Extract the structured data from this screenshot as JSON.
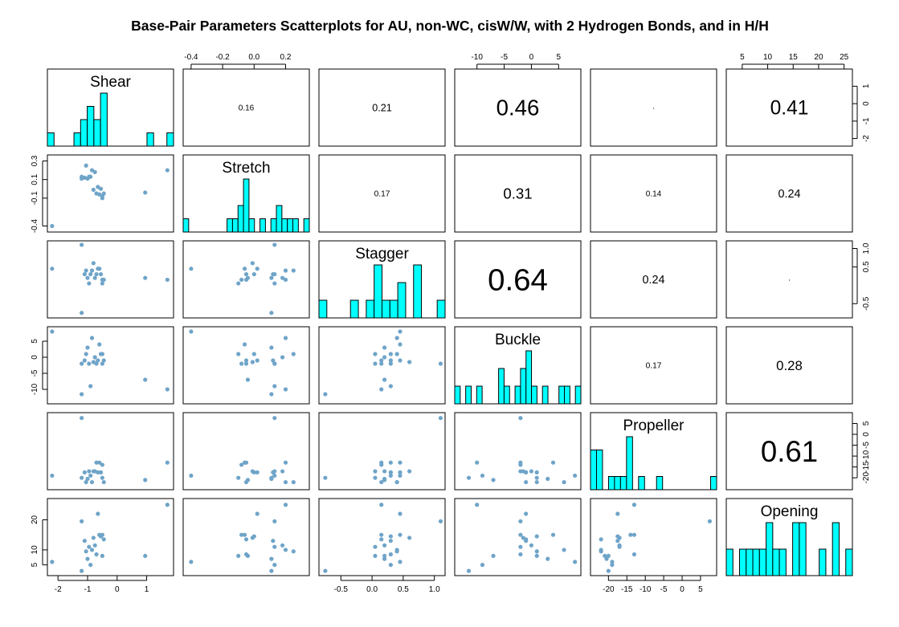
{
  "chart_data": {
    "type": "scatter",
    "title": "Base-Pair Parameters Scatterplots for AU, non-WC, cisW/W, with 2 Hydrogen Bonds, and in H/H",
    "variables": [
      "Shear",
      "Stretch",
      "Stagger",
      "Buckle",
      "Propeller",
      "Opening"
    ],
    "ranges": {
      "Shear": [
        -2.25,
        1.8
      ],
      "Stretch": [
        -0.43,
        0.33
      ],
      "Stagger": [
        -0.8,
        1.12
      ],
      "Buckle": [
        -13.5,
        8.5
      ],
      "Propeller": [
        -24.0,
        8.5
      ],
      "Opening": [
        2.5,
        26.0
      ]
    },
    "tick_labels": {
      "Shear": [
        "-2",
        "-1",
        "0",
        "1"
      ],
      "Stretch": [
        "-0.4",
        "-0.1",
        "0.1",
        "0.3"
      ],
      "Stretch_top": [
        "-0.4",
        "-0.2",
        "0.0",
        "0.2"
      ],
      "Stagger": [
        "-0.5",
        "0.5",
        "1.0"
      ],
      "Stagger_bottom": [
        "-0.5",
        "0.0",
        "0.5",
        "1.0"
      ],
      "Buckle": [
        "-10",
        "-5",
        "0",
        "5"
      ],
      "Propeller": [
        "-20",
        "-15",
        "-10",
        "-5",
        "0",
        "5"
      ],
      "Propeller_right": [
        "-20",
        "-15",
        "-10",
        "-5",
        "0",
        "5"
      ],
      "Opening": [
        "5",
        "10",
        "20"
      ],
      "Opening_top": [
        "5",
        "10",
        "15",
        "20",
        "25"
      ],
      "Shear_right": [
        "-2",
        "-1",
        "0",
        "1"
      ]
    },
    "axis_ticks": {
      "top": [
        {
          "col": 1,
          "var": "Stretch",
          "values": [
            -0.4,
            -0.2,
            0.0,
            0.2
          ],
          "labels": [
            "-0.4",
            "-0.2",
            "0.0",
            "0.2"
          ]
        },
        {
          "col": 3,
          "var": "Buckle",
          "values": [
            -10,
            -5,
            0,
            5
          ],
          "labels": [
            "-10",
            "-5",
            "0",
            "5"
          ]
        },
        {
          "col": 5,
          "var": "Opening",
          "values": [
            5,
            10,
            15,
            20,
            25
          ],
          "labels": [
            "5",
            "10",
            "15",
            "20",
            "25"
          ]
        }
      ],
      "bottom": [
        {
          "col": 0,
          "var": "Shear",
          "values": [
            -2,
            -1,
            0,
            1
          ],
          "labels": [
            "-2",
            "-1",
            "0",
            "1"
          ]
        },
        {
          "col": 2,
          "var": "Stagger",
          "values": [
            -0.5,
            0.0,
            0.5,
            1.0
          ],
          "labels": [
            "-0.5",
            "0.0",
            "0.5",
            "1.0"
          ]
        },
        {
          "col": 4,
          "var": "Propeller",
          "values": [
            -20,
            -15,
            -10,
            -5,
            0,
            5
          ],
          "labels": [
            "-20",
            "-15",
            "-10",
            "-5",
            "0",
            "5"
          ]
        }
      ],
      "left": [
        {
          "row": 1,
          "var": "Stretch",
          "values": [
            -0.4,
            -0.1,
            0.1,
            0.3
          ],
          "labels": [
            "-0.4",
            "-0.1",
            "0.1",
            "0.3"
          ]
        },
        {
          "row": 3,
          "var": "Buckle",
          "values": [
            -10,
            -5,
            0,
            5
          ],
          "labels": [
            "-10",
            "-5",
            "0",
            "5"
          ]
        },
        {
          "row": 5,
          "var": "Opening",
          "values": [
            5,
            10,
            20
          ],
          "labels": [
            "5",
            "10",
            "20"
          ]
        }
      ],
      "right": [
        {
          "row": 0,
          "var": "Shear",
          "values": [
            -2,
            -1,
            0,
            1
          ],
          "labels": [
            "-2",
            "-1",
            "0",
            "1"
          ]
        },
        {
          "row": 2,
          "var": "Stagger",
          "values": [
            -0.5,
            0.5,
            1.0
          ],
          "labels": [
            "-0.5",
            "0.5",
            "1.0"
          ]
        },
        {
          "row": 4,
          "var": "Propeller",
          "values": [
            -20,
            -15,
            -10,
            -5,
            0,
            5
          ],
          "labels": [
            "-20",
            "-15",
            "-10",
            "-5",
            "0",
            "5"
          ]
        }
      ]
    },
    "points": [
      {
        "Shear": -2.2,
        "Stretch": -0.4,
        "Stagger": 0.45,
        "Buckle": 8.0,
        "Propeller": -19.0,
        "Opening": 6.0
      },
      {
        "Shear": -1.2,
        "Stretch": 0.11,
        "Stagger": -0.75,
        "Buckle": -11.5,
        "Propeller": -20.0,
        "Opening": 3.0
      },
      {
        "Shear": -1.2,
        "Stretch": 0.13,
        "Stagger": 1.1,
        "Buckle": -2.0,
        "Propeller": 7.5,
        "Opening": 19.5
      },
      {
        "Shear": -1.1,
        "Stretch": 0.12,
        "Stagger": 0.3,
        "Buckle": -1.0,
        "Propeller": -17.5,
        "Opening": 13.0
      },
      {
        "Shear": -1.05,
        "Stretch": 0.25,
        "Stagger": 0.4,
        "Buckle": 1.0,
        "Propeller": -22.0,
        "Opening": 9.5
      },
      {
        "Shear": -1.0,
        "Stretch": 0.11,
        "Stagger": 0.2,
        "Buckle": 3.0,
        "Propeller": -20.5,
        "Opening": 7.0
      },
      {
        "Shear": -0.95,
        "Stretch": 0.13,
        "Stagger": 0.05,
        "Buckle": -2.0,
        "Propeller": -17.0,
        "Opening": 11.0
      },
      {
        "Shear": -0.9,
        "Stretch": 0.13,
        "Stagger": 0.3,
        "Buckle": -9.0,
        "Propeller": -19.0,
        "Opening": 5.0
      },
      {
        "Shear": -0.85,
        "Stretch": 0.2,
        "Stagger": 0.4,
        "Buckle": 6.0,
        "Propeller": -22.0,
        "Opening": 10.0
      },
      {
        "Shear": -0.8,
        "Stretch": -0.01,
        "Stagger": 0.6,
        "Buckle": -1.5,
        "Propeller": -17.0,
        "Opening": 14.0
      },
      {
        "Shear": -0.75,
        "Stretch": 0.18,
        "Stagger": 0.2,
        "Buckle": 0.0,
        "Propeller": -17.0,
        "Opening": 11.5
      },
      {
        "Shear": -0.7,
        "Stretch": -0.05,
        "Stagger": 0.3,
        "Buckle": -2.0,
        "Propeller": -13.0,
        "Opening": 8.5
      },
      {
        "Shear": -0.65,
        "Stretch": 0.02,
        "Stagger": 0.45,
        "Buckle": -1.0,
        "Propeller": -17.5,
        "Opening": 22.0
      },
      {
        "Shear": -0.6,
        "Stretch": -0.06,
        "Stagger": 0.45,
        "Buckle": 4.0,
        "Propeller": -13.0,
        "Opening": 15.0
      },
      {
        "Shear": -0.55,
        "Stretch": 0.0,
        "Stagger": 0.3,
        "Buckle": 1.0,
        "Propeller": -17.5,
        "Opening": 14.5
      },
      {
        "Shear": -0.5,
        "Stretch": -0.08,
        "Stagger": 0.15,
        "Buckle": -2.0,
        "Propeller": -14.0,
        "Opening": 15.0
      },
      {
        "Shear": -0.5,
        "Stretch": -0.1,
        "Stagger": 0.05,
        "Buckle": 1.0,
        "Propeller": -20.0,
        "Opening": 8.0
      },
      {
        "Shear": -0.45,
        "Stretch": -0.05,
        "Stagger": 0.15,
        "Buckle": -1.0,
        "Propeller": -22.0,
        "Opening": 13.5
      },
      {
        "Shear": 0.95,
        "Stretch": -0.04,
        "Stagger": 0.2,
        "Buckle": -7.0,
        "Propeller": -21.0,
        "Opening": 8.0
      },
      {
        "Shear": 1.7,
        "Stretch": 0.2,
        "Stagger": 0.15,
        "Buckle": -10.0,
        "Propeller": -13.0,
        "Opening": 25.0
      }
    ],
    "correlations": [
      {
        "row": 0,
        "col": 1,
        "text": "0.16"
      },
      {
        "row": 0,
        "col": 2,
        "text": "0.21"
      },
      {
        "row": 0,
        "col": 3,
        "text": "0.46"
      },
      {
        "row": 0,
        "col": 4,
        "text": "·"
      },
      {
        "row": 0,
        "col": 5,
        "text": "0.41"
      },
      {
        "row": 1,
        "col": 2,
        "text": "0.17"
      },
      {
        "row": 1,
        "col": 3,
        "text": "0.31"
      },
      {
        "row": 1,
        "col": 4,
        "text": "0.14"
      },
      {
        "row": 1,
        "col": 5,
        "text": "0.24"
      },
      {
        "row": 2,
        "col": 3,
        "text": "0.64"
      },
      {
        "row": 2,
        "col": 4,
        "text": "0.24"
      },
      {
        "row": 2,
        "col": 5,
        "text": "·"
      },
      {
        "row": 3,
        "col": 4,
        "text": "0.17"
      },
      {
        "row": 3,
        "col": 5,
        "text": "0.28"
      },
      {
        "row": 4,
        "col": 5,
        "text": "0.61"
      }
    ],
    "histograms": {
      "Shear": [
        1,
        0,
        0,
        0,
        1,
        2,
        3,
        2,
        4,
        0,
        0,
        0,
        0,
        0,
        0,
        1,
        0,
        0,
        1
      ],
      "Stretch": [
        1,
        0,
        0,
        0,
        0,
        0,
        0,
        0,
        1,
        1,
        2,
        4,
        1,
        0,
        1,
        0,
        1,
        2,
        1,
        1,
        1,
        0,
        1
      ],
      "Stagger": [
        1,
        0,
        0,
        0,
        1,
        0,
        1,
        3,
        1,
        1,
        2,
        0,
        3,
        0,
        0,
        1
      ],
      "Buckle": [
        1,
        0,
        1,
        0,
        1,
        0,
        0,
        0,
        2,
        1,
        0,
        1,
        2,
        3,
        1,
        0,
        1,
        0,
        0,
        1,
        1,
        0,
        1
      ],
      "Propeller": [
        3,
        3,
        0,
        1,
        1,
        1,
        4,
        0,
        1,
        0,
        0,
        1,
        0,
        0,
        0,
        0,
        0,
        0,
        0,
        0,
        1
      ],
      "Opening": [
        1,
        0,
        1,
        1,
        1,
        1,
        2,
        1,
        1,
        0,
        2,
        2,
        0,
        0,
        1,
        0,
        2,
        0,
        1
      ]
    },
    "colors": {
      "point": "#6FA4C8",
      "hist_fill": "#00FFFF",
      "frame": "#000000"
    }
  }
}
